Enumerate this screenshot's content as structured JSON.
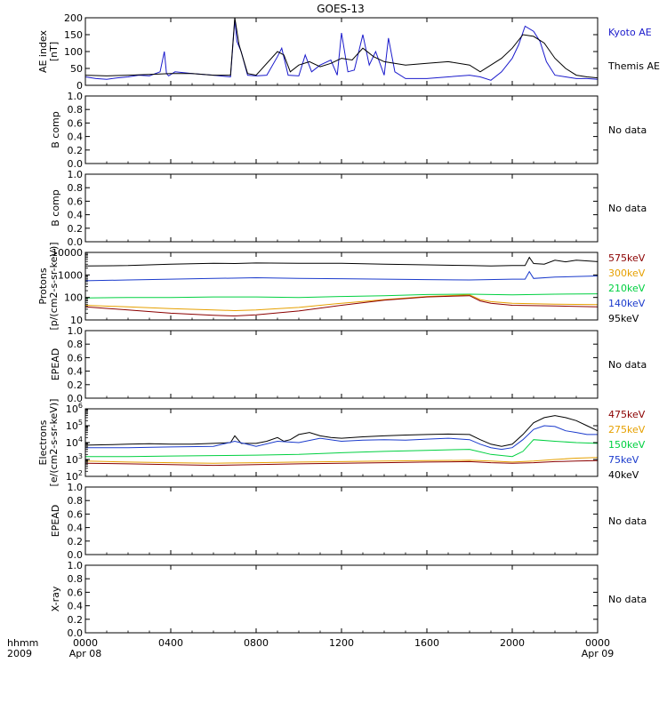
{
  "title": "GOES-13",
  "x_axis": {
    "corner_label_line1": "hhmm",
    "corner_label_line2": "2009",
    "tick_labels": [
      "0000",
      "0400",
      "0800",
      "1200",
      "1600",
      "2000",
      "0000"
    ],
    "date_labels": [
      {
        "text": "Apr 08",
        "at": "0000"
      },
      {
        "text": "Apr 09",
        "at": "2400"
      }
    ]
  },
  "chart_data": [
    {
      "id": "ae",
      "type": "line",
      "ylabel": [
        "AE index",
        "[nT]"
      ],
      "ylim": [
        0,
        200
      ],
      "y_ticks": [
        0,
        50,
        100,
        150,
        200
      ],
      "x_hours": [
        0,
        24
      ],
      "legend": [
        {
          "name": "Kyoto AE",
          "color": "#1a1acc"
        },
        {
          "name": "Themis AE",
          "color": "#000000"
        }
      ],
      "series": [
        {
          "name": "Kyoto AE",
          "color": "#1a1acc",
          "x": [
            0,
            0.5,
            1,
            1.5,
            2,
            2.5,
            3,
            3.5,
            3.7,
            3.8,
            3.9,
            4.2,
            5,
            6,
            6.8,
            7,
            7.1,
            7.3,
            7.6,
            8,
            8.5,
            9,
            9.2,
            9.5,
            10,
            10.3,
            10.6,
            11,
            11.5,
            11.8,
            12,
            12.3,
            12.6,
            13,
            13.3,
            13.6,
            14,
            14.2,
            14.5,
            15,
            16,
            17,
            18,
            18.5,
            19,
            19.5,
            20,
            20.3,
            20.6,
            21,
            21.3,
            21.6,
            22,
            22.5,
            23,
            23.5,
            24
          ],
          "y": [
            25,
            20,
            18,
            22,
            25,
            30,
            28,
            40,
            100,
            35,
            28,
            40,
            35,
            30,
            25,
            195,
            130,
            100,
            30,
            28,
            30,
            85,
            110,
            30,
            28,
            90,
            40,
            60,
            75,
            30,
            155,
            40,
            45,
            150,
            60,
            100,
            30,
            140,
            40,
            20,
            20,
            25,
            30,
            25,
            15,
            40,
            80,
            120,
            175,
            160,
            130,
            70,
            30,
            25,
            20,
            20,
            18
          ]
        },
        {
          "name": "Themis AE",
          "color": "#000000",
          "x": [
            0,
            1,
            2,
            3,
            4,
            5,
            6,
            6.8,
            7,
            7.2,
            7.6,
            8,
            9,
            9.3,
            9.6,
            10,
            10.5,
            11,
            11.5,
            12,
            12.5,
            13,
            13.5,
            14,
            15,
            16,
            17,
            18,
            18.5,
            19,
            19.5,
            20,
            20.5,
            21,
            21.5,
            22,
            22.5,
            23,
            23.5,
            24
          ],
          "y": [
            30,
            28,
            30,
            32,
            35,
            35,
            30,
            30,
            200,
            120,
            35,
            30,
            100,
            90,
            40,
            60,
            70,
            55,
            65,
            80,
            75,
            110,
            85,
            70,
            60,
            65,
            70,
            60,
            40,
            60,
            80,
            110,
            150,
            145,
            125,
            80,
            50,
            30,
            25,
            22
          ]
        }
      ]
    },
    {
      "id": "bcomp1",
      "type": "line",
      "ylabel": [
        "B comp"
      ],
      "ylim": [
        0,
        1
      ],
      "y_ticks": [
        0.0,
        0.2,
        0.4,
        0.6,
        0.8,
        1.0
      ],
      "status": "No data",
      "series": []
    },
    {
      "id": "bcomp2",
      "type": "line",
      "ylabel": [
        "B comp"
      ],
      "ylim": [
        0,
        1
      ],
      "y_ticks": [
        0.0,
        0.2,
        0.4,
        0.6,
        0.8,
        1.0
      ],
      "status": "No data",
      "series": []
    },
    {
      "id": "protons",
      "type": "line",
      "scale": "log",
      "ylabel": [
        "Protons",
        "[p/(cm2-s-sr-keV)]"
      ],
      "ylim": [
        10,
        10000
      ],
      "y_ticks": [
        10,
        100,
        1000,
        10000
      ],
      "x_hours": [
        0,
        24
      ],
      "legend": [
        {
          "name": "575keV",
          "color": "#8b0000"
        },
        {
          "name": "300keV",
          "color": "#e6a000"
        },
        {
          "name": "210keV",
          "color": "#00d040"
        },
        {
          "name": "140keV",
          "color": "#1a3acc"
        },
        {
          "name": "95keV",
          "color": "#000000"
        }
      ],
      "series": [
        {
          "name": "95keV",
          "color": "#000000",
          "x": [
            0,
            2,
            4,
            6,
            7,
            8,
            10,
            12,
            14,
            16,
            18,
            19,
            20,
            20.6,
            20.8,
            21,
            21.5,
            22,
            22.5,
            23,
            24
          ],
          "y": [
            2500,
            2600,
            3000,
            3300,
            3200,
            3400,
            3300,
            3300,
            3000,
            2800,
            2600,
            2500,
            2600,
            2600,
            6000,
            3200,
            3000,
            4500,
            3800,
            4500,
            3900
          ]
        },
        {
          "name": "140keV",
          "color": "#1a3acc",
          "x": [
            0,
            2,
            4,
            6,
            8,
            10,
            12,
            14,
            16,
            18,
            20,
            20.6,
            20.8,
            21,
            22,
            23,
            24
          ],
          "y": [
            550,
            600,
            650,
            700,
            750,
            700,
            680,
            650,
            620,
            600,
            650,
            650,
            1400,
            700,
            800,
            850,
            900
          ]
        },
        {
          "name": "210keV",
          "color": "#00d040",
          "x": [
            0,
            2,
            4,
            6,
            8,
            10,
            12,
            14,
            16,
            18,
            20,
            22,
            24
          ],
          "y": [
            95,
            100,
            100,
            105,
            105,
            100,
            110,
            120,
            135,
            140,
            130,
            140,
            145
          ]
        },
        {
          "name": "300keV",
          "color": "#e6a000",
          "x": [
            0,
            2,
            4,
            6,
            7,
            8,
            10,
            12,
            14,
            16,
            18,
            18.5,
            19,
            20,
            22,
            24
          ],
          "y": [
            45,
            38,
            32,
            28,
            26,
            28,
            36,
            55,
            80,
            110,
            130,
            80,
            65,
            55,
            50,
            48
          ]
        },
        {
          "name": "575keV",
          "color": "#8b0000",
          "x": [
            0,
            2,
            4,
            6,
            7,
            8,
            10,
            12,
            14,
            16,
            18,
            18.5,
            19,
            20,
            22,
            24
          ],
          "y": [
            38,
            28,
            20,
            16,
            15,
            17,
            25,
            45,
            75,
            105,
            120,
            70,
            55,
            45,
            42,
            38
          ]
        }
      ]
    },
    {
      "id": "epead1",
      "type": "line",
      "ylabel": [
        "EPEAD"
      ],
      "ylim": [
        0,
        1
      ],
      "y_ticks": [
        0.0,
        0.2,
        0.4,
        0.6,
        0.8,
        1.0
      ],
      "status": "No data",
      "series": []
    },
    {
      "id": "electrons",
      "type": "line",
      "scale": "log",
      "ylabel": [
        "Electrons",
        "[e/(cm2-s-sr-keV)]"
      ],
      "ylim": [
        100,
        1000000
      ],
      "y_ticks": [
        100,
        1000,
        10000,
        100000,
        1000000
      ],
      "x_hours": [
        0,
        24
      ],
      "legend": [
        {
          "name": "475keV",
          "color": "#8b0000"
        },
        {
          "name": "275keV",
          "color": "#e6a000"
        },
        {
          "name": "150keV",
          "color": "#00d040"
        },
        {
          "name": "75keV",
          "color": "#1a3acc"
        },
        {
          "name": "40keV",
          "color": "#000000"
        }
      ],
      "series": [
        {
          "name": "40keV",
          "color": "#000000",
          "x": [
            0,
            1,
            2,
            3,
            4,
            5,
            6,
            6.8,
            7,
            7.3,
            8,
            8.5,
            9,
            9.3,
            9.6,
            10,
            10.5,
            11,
            11.5,
            12,
            13,
            14,
            15,
            16,
            17,
            18,
            18.5,
            19,
            19.5,
            20,
            20.5,
            21,
            21.5,
            22,
            22.5,
            23,
            23.5,
            24
          ],
          "y": [
            7000,
            7500,
            8000,
            8500,
            8000,
            8000,
            9000,
            10000,
            25000,
            9000,
            9000,
            12000,
            20000,
            12000,
            15000,
            30000,
            40000,
            25000,
            20000,
            18000,
            22000,
            25000,
            28000,
            30000,
            32000,
            30000,
            15000,
            8000,
            6000,
            8000,
            30000,
            150000,
            300000,
            400000,
            300000,
            200000,
            100000,
            50000
          ]
        },
        {
          "name": "75keV",
          "color": "#1a3acc",
          "x": [
            0,
            2,
            4,
            6,
            7,
            8,
            9,
            10,
            11,
            12,
            13,
            14,
            15,
            16,
            17,
            18,
            18.5,
            19,
            19.5,
            20,
            20.5,
            21,
            21.5,
            22,
            22.5,
            23,
            23.5,
            24
          ],
          "y": [
            5000,
            5000,
            5500,
            6000,
            12000,
            6000,
            12000,
            10000,
            18000,
            12000,
            14000,
            15000,
            14000,
            16000,
            18000,
            15000,
            8000,
            5000,
            4000,
            5000,
            15000,
            60000,
            100000,
            90000,
            50000,
            40000,
            30000,
            30000
          ]
        },
        {
          "name": "150keV",
          "color": "#00d040",
          "x": [
            0,
            2,
            4,
            6,
            8,
            10,
            12,
            14,
            16,
            18,
            19,
            20,
            20.5,
            21,
            22,
            23,
            24
          ],
          "y": [
            1500,
            1500,
            1600,
            1700,
            1800,
            2000,
            2500,
            3000,
            3500,
            4000,
            2000,
            1500,
            3000,
            15000,
            12000,
            10000,
            9000
          ]
        },
        {
          "name": "275keV",
          "color": "#e6a000",
          "x": [
            0,
            2,
            4,
            6,
            8,
            10,
            12,
            14,
            16,
            18,
            19,
            20,
            21,
            22,
            23,
            24
          ],
          "y": [
            800,
            700,
            650,
            600,
            650,
            700,
            750,
            800,
            850,
            900,
            800,
            700,
            800,
            1000,
            1200,
            1300
          ]
        },
        {
          "name": "475keV",
          "color": "#8b0000",
          "x": [
            0,
            2,
            4,
            6,
            8,
            10,
            12,
            14,
            16,
            18,
            19,
            20,
            21,
            22,
            23,
            24
          ],
          "y": [
            600,
            550,
            500,
            450,
            500,
            550,
            600,
            650,
            700,
            750,
            650,
            600,
            650,
            750,
            800,
            850
          ]
        }
      ]
    },
    {
      "id": "epead2",
      "type": "line",
      "ylabel": [
        "EPEAD"
      ],
      "ylim": [
        0,
        1
      ],
      "y_ticks": [
        0.0,
        0.2,
        0.4,
        0.6,
        0.8,
        1.0
      ],
      "status": "No data",
      "series": []
    },
    {
      "id": "xray",
      "type": "line",
      "ylabel": [
        "X-ray"
      ],
      "ylim": [
        0,
        1
      ],
      "y_ticks": [
        0.0,
        0.2,
        0.4,
        0.6,
        0.8,
        1.0
      ],
      "status": "No data",
      "series": []
    }
  ]
}
